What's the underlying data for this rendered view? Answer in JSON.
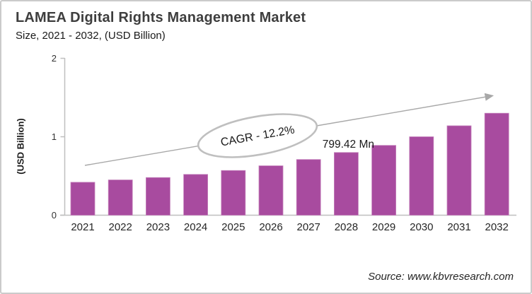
{
  "header": {
    "title": "LAMEA Digital Rights Management Market",
    "subtitle": "Size, 2021 - 2032, (USD Billion)"
  },
  "footer": {
    "source": "Source: www.kbvresearch.com"
  },
  "chart_data": {
    "type": "bar",
    "title": "LAMEA Digital Rights Management Market",
    "subtitle": "Size, 2021 - 2032, (USD Billion)",
    "categories": [
      "2021",
      "2022",
      "2023",
      "2024",
      "2025",
      "2026",
      "2027",
      "2028",
      "2029",
      "2030",
      "2031",
      "2032"
    ],
    "values": [
      0.42,
      0.45,
      0.48,
      0.52,
      0.57,
      0.63,
      0.71,
      0.7994,
      0.89,
      1.0,
      1.14,
      1.3
    ],
    "ylabel": "(USD Billion)",
    "ylim": [
      0,
      2
    ],
    "yticks": [
      0,
      1,
      2
    ],
    "grid": false,
    "legend": "none",
    "colors": {
      "bar": "#a84b9f",
      "bar_edge": "#c583bc",
      "axis": "#bfbfbf",
      "tick_label": "#333333",
      "category_label": "#262626",
      "arrow": "#a8a8a8",
      "ellipse_stroke": "#bfbfbf",
      "annotation_text": "#1a1a1a"
    },
    "annotations": {
      "cagr_label": "CAGR - 12.2%",
      "data_label": {
        "text": "799.42 Mn",
        "category": "2028"
      },
      "trend_arrow": {
        "direction": "up-right"
      }
    }
  }
}
